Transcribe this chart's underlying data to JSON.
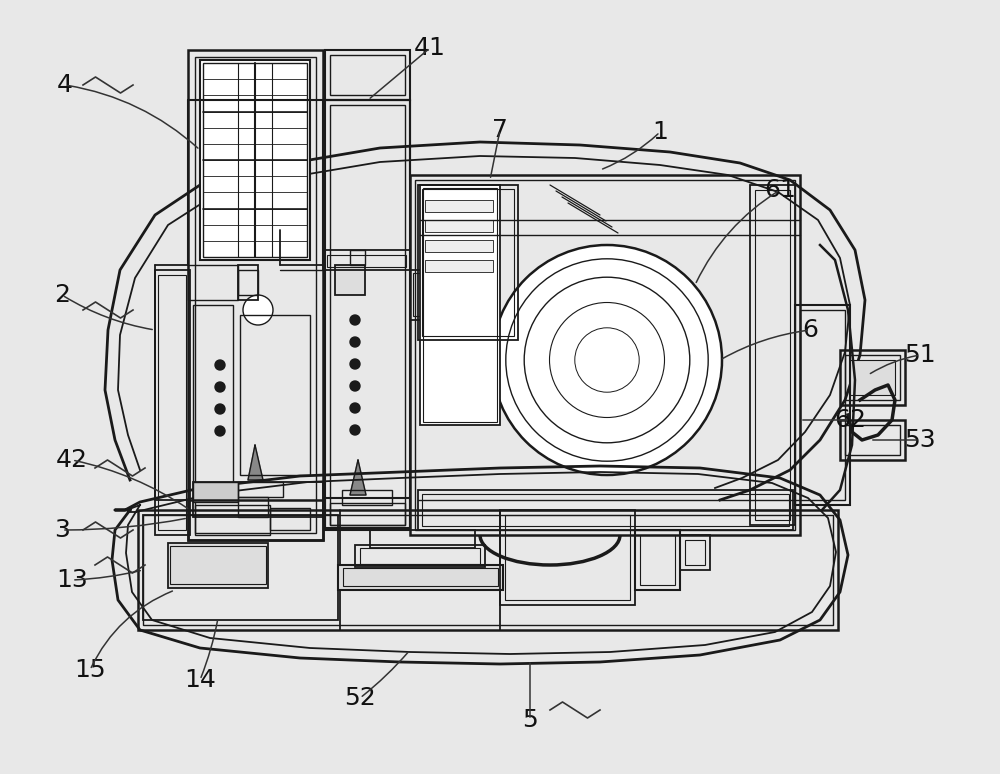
{
  "bg": "#e8e8e8",
  "lc": "#1a1a1a",
  "fig_w": 10.0,
  "fig_h": 7.74,
  "dpi": 100
}
